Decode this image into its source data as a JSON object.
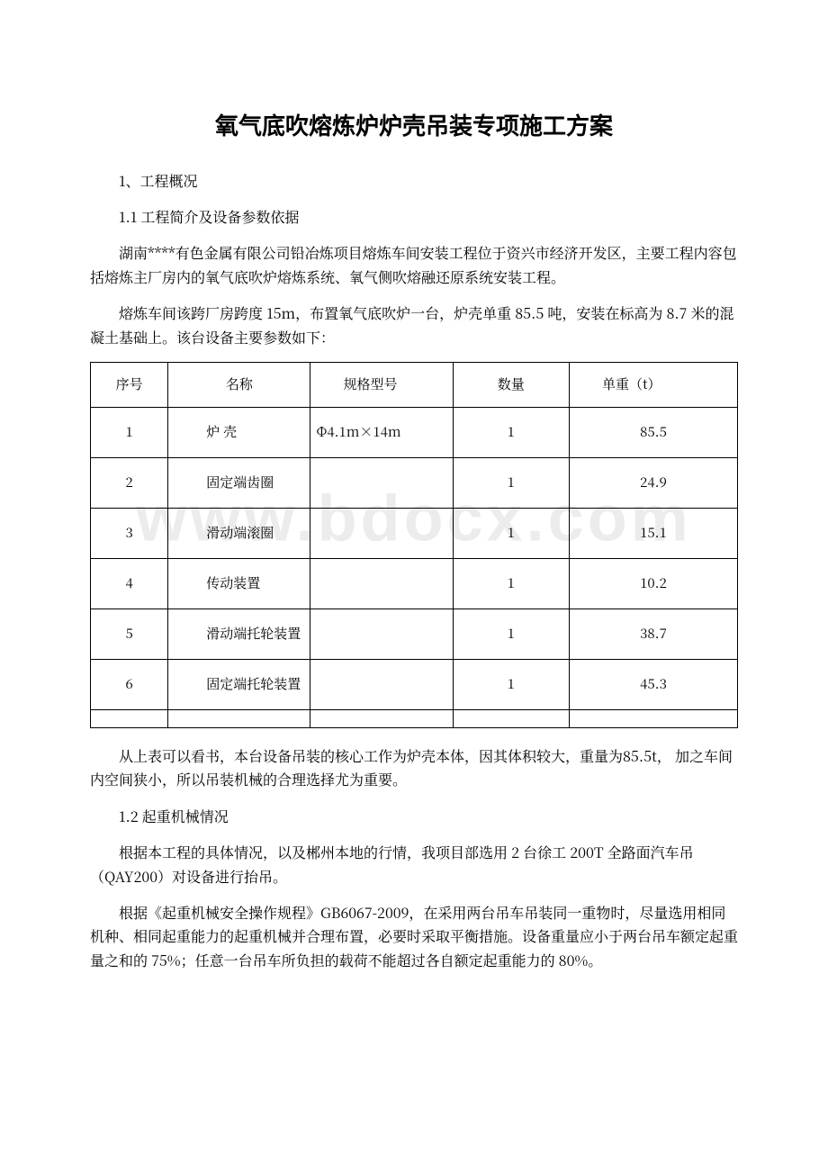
{
  "title": "氧气底吹熔炼炉炉壳吊装专项施工方案",
  "watermark": "www.bdocx.com",
  "sec1": "1、工程概况",
  "sec11": "1.1 工程简介及设备参数依据",
  "p1": "湖南****有色金属有限公司铅冶炼项目熔炼车间安装工程位于资兴市经济开发区，主要工程内容包括熔炼主厂房内的氧气底吹炉熔炼系统、氧气侧吹熔融还原系统安装工程。",
  "p2": "熔炼车间该跨厂房跨度 15m，布置氧气底吹炉一台，炉壳单重 85.5 吨，安装在标高为 8.7 米的混凝土基础上。该台设备主要参数如下：",
  "table": {
    "columns": {
      "idx": "序号",
      "name": "名称",
      "spec": "规格型号",
      "qty": "数量",
      "wt": "单重（t）"
    },
    "rows": {
      "r1": {
        "idx": "1",
        "name": "炉 壳",
        "spec": "Φ4.1m×14m",
        "qty": "1",
        "wt": "85.5"
      },
      "r2": {
        "idx": "2",
        "name": "固定端齿圈",
        "spec": "",
        "qty": "1",
        "wt": "24.9"
      },
      "r3": {
        "idx": "3",
        "name": "滑动端滚圈",
        "spec": "",
        "qty": "1",
        "wt": "15.1"
      },
      "r4": {
        "idx": "4",
        "name": "传动装置",
        "spec": "",
        "qty": "1",
        "wt": "10.2"
      },
      "r5": {
        "idx": "5",
        "name": "滑动端托轮装置",
        "spec": "",
        "qty": "1",
        "wt": "38.7"
      },
      "r6": {
        "idx": "6",
        "name": "固定端托轮装置",
        "spec": "",
        "qty": "1",
        "wt": "45.3"
      }
    }
  },
  "p3": "从上表可以看书，本台设备吊装的核心工作为炉壳本体，因其体积较大，重量为85.5t， 加之车间内空间狭小，所以吊装机械的合理选择尤为重要。",
  "sec12": "1.2 起重机械情况",
  "p4": "根据本工程的具体情况，以及郴州本地的行情，我项目部选用 2 台徐工 200T 全路面汽车吊（QAY200）对设备进行抬吊。",
  "p5": "根据《起重机械安全操作规程》GB6067-2009，在采用两台吊车吊装同一重物时，尽量选用相同机种、相同起重能力的起重机械并合理布置，必要时采取平衡措施。设备重量应小于两台吊车额定起重量之和的 75%；任意一台吊车所负担的载荷不能超过各自额定起重能力的 80%。"
}
